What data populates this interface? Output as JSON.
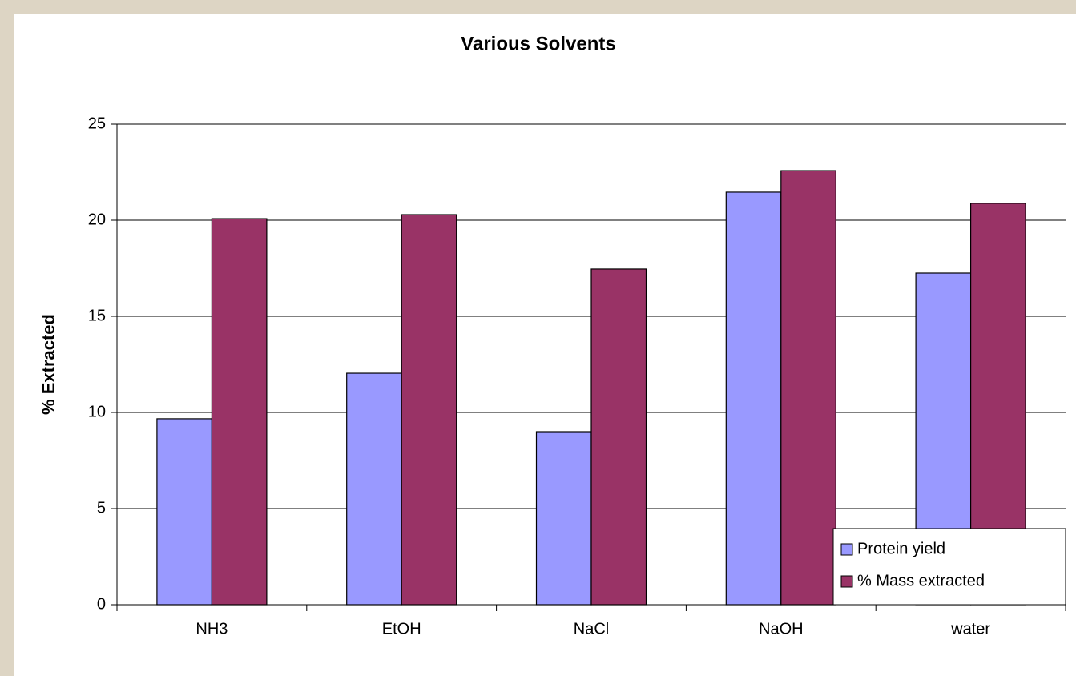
{
  "chart_data": {
    "type": "bar",
    "title": "Various Solvents",
    "y_label": "% Extracted",
    "categories": [
      "NH3",
      "EtOH",
      "NaCl",
      "NaOH",
      "water"
    ],
    "series": [
      {
        "name": "Protein yield",
        "color": "#9999ff",
        "values": [
          9.67,
          12.04,
          9.0,
          21.46,
          17.25
        ]
      },
      {
        "name": "% Mass extracted",
        "color": "#993366",
        "values": [
          20.08,
          20.29,
          17.46,
          22.58,
          20.88
        ]
      }
    ],
    "ylim": [
      0,
      25
    ],
    "yticks": [
      0,
      5,
      10,
      15,
      20,
      25
    ],
    "grid": true,
    "legend": "lower right"
  }
}
